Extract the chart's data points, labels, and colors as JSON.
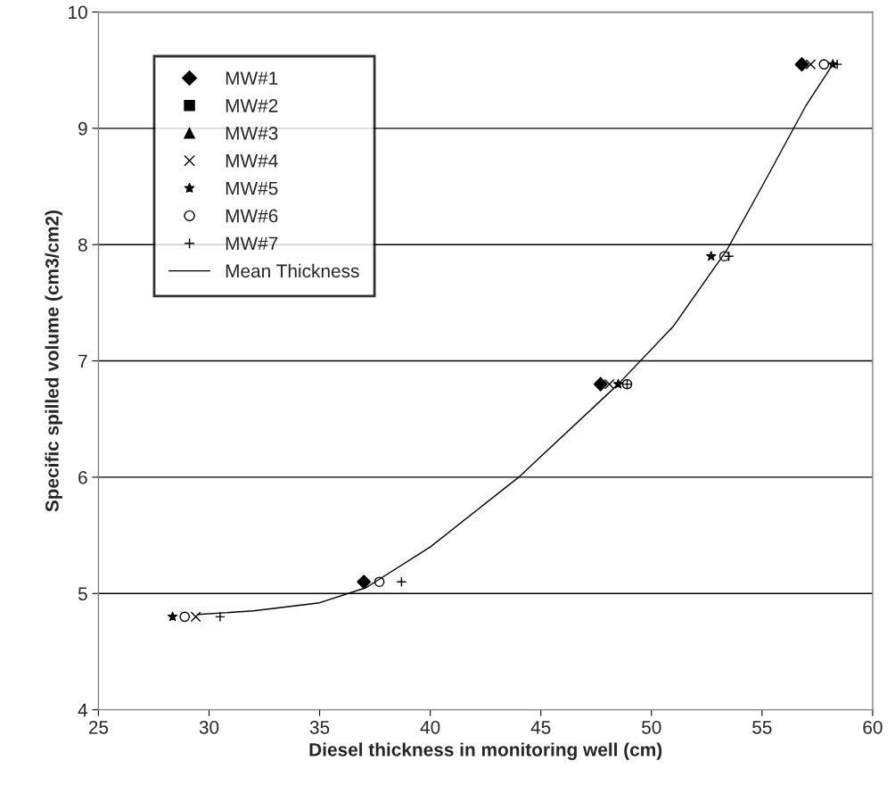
{
  "chart_data": {
    "type": "scatter",
    "xlabel": "Diesel thickness in monitoring well (cm)",
    "ylabel": "Specific spilled volume (cm3/cm2)",
    "xlim": [
      25,
      60
    ],
    "xticks": [
      25,
      30,
      35,
      40,
      45,
      50,
      55,
      60
    ],
    "ylim": [
      4,
      10
    ],
    "yticks": [
      4,
      5,
      6,
      7,
      8,
      9,
      10
    ],
    "grid": "y",
    "legend": "top left",
    "series": [
      {
        "name": "MW#1",
        "color": "#000000",
        "marker": "diamond",
        "x": [
          37.0,
          47.7,
          56.8
        ],
        "values": [
          5.1,
          6.8,
          9.55
        ]
      },
      {
        "name": "MW#2",
        "color": "#000000",
        "marker": "square"
      },
      {
        "name": "MW#3",
        "color": "#000000",
        "marker": "triangle"
      },
      {
        "name": "MW#4",
        "color": "#000000",
        "marker": "cross",
        "x": [
          29.4,
          48.1,
          57.2
        ],
        "values": [
          4.8,
          6.8,
          9.55
        ]
      },
      {
        "name": "MW#5",
        "color": "#000000",
        "marker": "star",
        "x": [
          28.35,
          48.5,
          52.7,
          58.2
        ],
        "values": [
          4.8,
          6.8,
          7.9,
          9.55
        ]
      },
      {
        "name": "MW#6",
        "color": "#000000",
        "marker": "circle",
        "x": [
          28.9,
          37.7,
          48.9,
          53.3,
          57.8
        ],
        "values": [
          4.8,
          5.1,
          6.8,
          7.9,
          9.55
        ]
      },
      {
        "name": "MW#7",
        "color": "#000000",
        "marker": "plus",
        "x": [
          30.5,
          38.7,
          48.9,
          53.5,
          58.4
        ],
        "values": [
          4.8,
          5.1,
          6.8,
          7.9,
          9.55
        ]
      },
      {
        "name": "Mean Thickness",
        "type": "line",
        "color": "#000000",
        "marker": "none",
        "line_style": "solid",
        "x": [
          29.5,
          32,
          35,
          37.1,
          40,
          44,
          48.5,
          51,
          53.4,
          55,
          57,
          58.2
        ],
        "values": [
          4.82,
          4.85,
          4.92,
          5.05,
          5.4,
          6.0,
          6.8,
          7.3,
          7.95,
          8.5,
          9.2,
          9.55
        ]
      }
    ]
  }
}
